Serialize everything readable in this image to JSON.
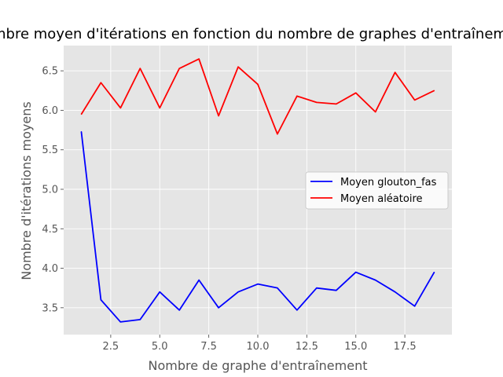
{
  "chart_data": {
    "type": "line",
    "title": "Nombre moyen d'itérations en fonction du nombre de graphes d'entraînement",
    "xlabel": "Nombre de graphe d'entraînement",
    "ylabel": "Nombre d'itérations moyens",
    "xlim": [
      0.1,
      19.9
    ],
    "ylim": [
      3.16,
      6.82
    ],
    "x_ticks": [
      2.5,
      5.0,
      7.5,
      10.0,
      12.5,
      15.0,
      17.5
    ],
    "y_ticks": [
      3.5,
      4.0,
      4.5,
      5.0,
      5.5,
      6.0,
      6.5
    ],
    "x_tick_labels": [
      "2.5",
      "5.0",
      "7.5",
      "10.0",
      "12.5",
      "15.0",
      "17.5"
    ],
    "y_tick_labels": [
      "3.5",
      "4.0",
      "4.5",
      "5.0",
      "5.5",
      "6.0",
      "6.5"
    ],
    "grid": true,
    "legend_position": "center-right",
    "x": [
      1,
      2,
      3,
      4,
      5,
      6,
      7,
      8,
      9,
      10,
      11,
      12,
      13,
      14,
      15,
      16,
      17,
      18,
      19
    ],
    "series": [
      {
        "name": "Moyen glouton_fas",
        "color": "#0000ff",
        "values": [
          5.73,
          3.6,
          3.32,
          3.35,
          3.7,
          3.47,
          3.85,
          3.5,
          3.7,
          3.8,
          3.75,
          3.47,
          3.75,
          3.72,
          3.95,
          3.85,
          3.7,
          3.52,
          3.95
        ]
      },
      {
        "name": "Moyen aléatoire",
        "color": "#ff0000",
        "values": [
          5.95,
          6.35,
          6.03,
          6.53,
          6.03,
          6.53,
          6.65,
          5.93,
          6.55,
          6.33,
          5.7,
          6.18,
          6.1,
          6.08,
          6.22,
          5.98,
          6.48,
          6.13,
          6.25
        ]
      }
    ]
  }
}
